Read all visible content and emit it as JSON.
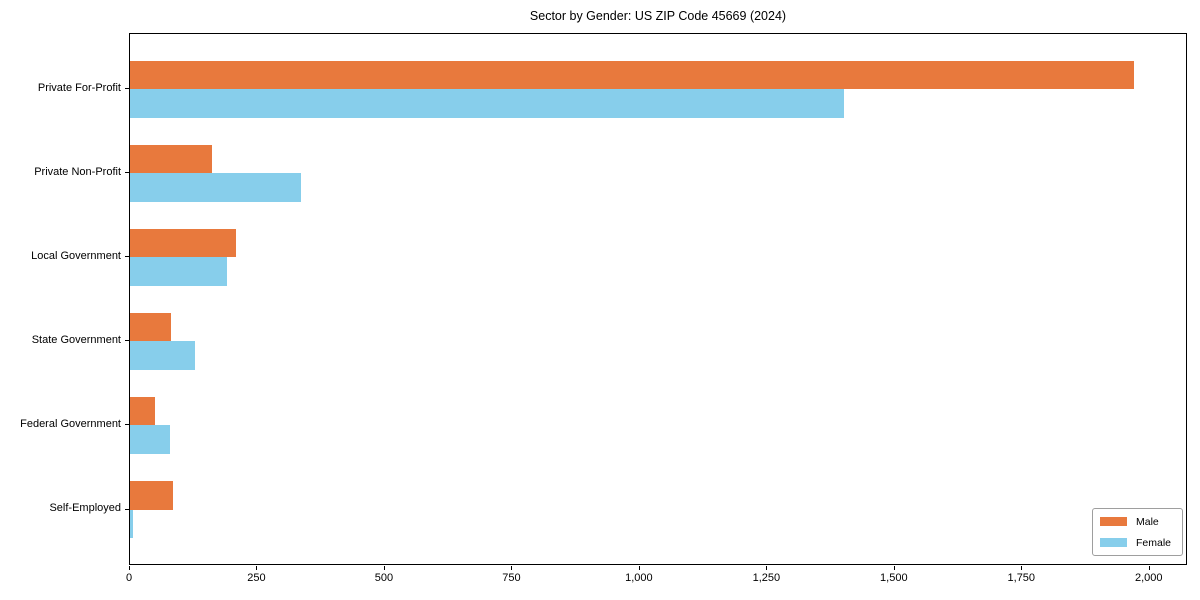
{
  "chart_data": {
    "type": "bar",
    "orientation": "horizontal",
    "title": "Sector by Gender: US ZIP Code 45669 (2024)",
    "categories": [
      "Private For-Profit",
      "Private Non-Profit",
      "Local Government",
      "State Government",
      "Federal Government",
      "Self-Employed"
    ],
    "series": [
      {
        "name": "Male",
        "color": "#e8793d",
        "values": [
          1970,
          160,
          208,
          80,
          50,
          85
        ]
      },
      {
        "name": "Female",
        "color": "#87ceeb",
        "values": [
          1400,
          335,
          190,
          128,
          78,
          5
        ]
      }
    ],
    "xlabel": "",
    "ylabel": "",
    "xlim": [
      0,
      2075
    ],
    "xticks": [
      0,
      250,
      500,
      750,
      1000,
      1250,
      1500,
      1750,
      2000
    ],
    "xtick_labels": [
      "0",
      "250",
      "500",
      "750",
      "1,000",
      "1,250",
      "1,500",
      "1,750",
      "2,000"
    ],
    "grid": false,
    "legend": {
      "position": "lower right",
      "entries": [
        "Male",
        "Female"
      ]
    }
  }
}
